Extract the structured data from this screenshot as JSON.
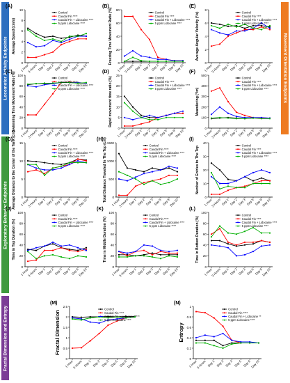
{
  "sections": {
    "locomotor": {
      "label": "Locomotor Activity Endpoints",
      "color": "#2e6fbf"
    },
    "movement": {
      "label": "Movement Orientation Endpoints",
      "color": "#ee7b21"
    },
    "exploratory": {
      "label": "Exploratory Behavior Endpoints",
      "color": "#3f9a3f"
    },
    "fractal": {
      "label": "Fractal Dimension and Entropy",
      "color": "#7b3d96"
    }
  },
  "series_colors": [
    "#000000",
    "#ff0000",
    "#0000ff",
    "#00b000"
  ],
  "x_categories": [
    "1 Hour",
    "3 Hours",
    "Day 1",
    "Day 2",
    "Day 3",
    "Day 5",
    "Day 8",
    "Day 10"
  ],
  "chart_data": [
    {
      "type": "line",
      "panel": "(A)",
      "ylabel": "Average Speed (cm/s)",
      "ylim": [
        0,
        10
      ],
      "yticks": [
        0,
        2,
        4,
        6,
        8,
        10
      ],
      "legend": [
        "Control",
        "Caudal Fin ****",
        "Caudal Fin + Lidocaine ****",
        "5 ppm Lidocaine ****"
      ],
      "series": [
        {
          "name": "Control",
          "values": [
            6.5,
            5.5,
            4.8,
            5.0,
            4.6,
            4.8,
            5.2,
            5.0
          ]
        },
        {
          "name": "Caudal Fin ****",
          "values": [
            1.0,
            1.0,
            1.5,
            2.0,
            3.4,
            4.0,
            4.5,
            4.5
          ]
        },
        {
          "name": "Caudal Fin + Lidocaine ****",
          "values": [
            3.8,
            3.0,
            3.2,
            4.2,
            3.8,
            4.4,
            5.0,
            5.0
          ]
        },
        {
          "name": "5 ppm Lidocaine ****",
          "values": [
            6.2,
            5.0,
            4.2,
            4.5,
            4.0,
            5.0,
            5.0,
            5.5
          ]
        }
      ]
    },
    {
      "type": "line",
      "panel": "(B)",
      "ylabel": "Freezing Time Movement Ratio (%)",
      "ylim": [
        0,
        80
      ],
      "yticks": [
        0,
        20,
        40,
        60,
        80
      ],
      "legend": [
        "Control",
        "Caudal Fin ****",
        "Caudal Fin + Lidocaine ****",
        "5 ppm Lidocaine ****"
      ],
      "series": [
        {
          "name": "Control",
          "values": [
            2,
            2,
            2,
            2,
            2,
            2,
            2,
            2
          ]
        },
        {
          "name": "Caudal Fin ****",
          "values": [
            70,
            70,
            50,
            35,
            8,
            5,
            3,
            3
          ]
        },
        {
          "name": "Caudal Fin + Lidocaine ****",
          "values": [
            10,
            18,
            10,
            8,
            5,
            5,
            3,
            3
          ]
        },
        {
          "name": "5 ppm Lidocaine ****",
          "values": [
            2,
            8,
            3,
            2,
            2,
            2,
            2,
            2
          ]
        }
      ]
    },
    {
      "type": "line",
      "panel": "(C)",
      "ylabel": "Swimming Time Movement Ratio (%)",
      "ylim": [
        0,
        100
      ],
      "yticks": [
        0,
        20,
        40,
        60,
        80,
        100
      ],
      "legend": [
        "Control",
        "Caudal Fin ****",
        "Caudal Fin + Lidocaine ****",
        "5 ppm Lidocaine ****"
      ],
      "series": [
        {
          "name": "Control",
          "values": [
            82,
            84,
            84,
            85,
            86,
            86,
            85,
            85
          ]
        },
        {
          "name": "Caudal Fin ****",
          "values": [
            25,
            25,
            45,
            65,
            86,
            87,
            86,
            85
          ]
        },
        {
          "name": "Caudal Fin + Lidocaine ****",
          "values": [
            80,
            78,
            82,
            84,
            86,
            86,
            86,
            85
          ]
        },
        {
          "name": "5 ppm Lidocaine ****",
          "values": [
            83,
            84,
            85,
            85,
            86,
            86,
            85,
            86
          ]
        }
      ]
    },
    {
      "type": "line",
      "panel": "(D)",
      "ylabel": "Rapid movement time ratio (%)",
      "ylim": [
        0,
        25
      ],
      "yticks": [
        0,
        5,
        10,
        15,
        20,
        25
      ],
      "legend": [
        "Control",
        "Caudal Fin ****",
        "Caudal Fin + Lidocaine ****",
        "5 ppm Lidocaine ****"
      ],
      "series": [
        {
          "name": "Control",
          "values": [
            15,
            10,
            6,
            5,
            5,
            6,
            7,
            7
          ]
        },
        {
          "name": "Caudal Fin ****",
          "values": [
            1,
            1,
            2,
            3,
            5,
            6,
            7,
            7
          ]
        },
        {
          "name": "Caudal Fin + Lidocaine ****",
          "values": [
            5,
            4,
            5,
            6,
            5,
            6,
            7,
            8
          ]
        },
        {
          "name": "5 ppm Lidocaine ****",
          "values": [
            12,
            8,
            5,
            4,
            4,
            5,
            5,
            5
          ]
        }
      ]
    },
    {
      "type": "line",
      "panel": "(E)",
      "ylabel": "Average Angular Velocity (°/s)",
      "ylim": [
        0,
        8
      ],
      "yticks": [
        0,
        2,
        4,
        6,
        8
      ],
      "legend": [
        "Control",
        "Caudal Fin ****",
        "Caudal Fin + Lidocaine ****",
        "5 ppm Lidocaine ****"
      ],
      "series": [
        {
          "name": "Control",
          "values": [
            6.0,
            5.8,
            5.5,
            5.6,
            5.2,
            5.6,
            5.6,
            5.4
          ]
        },
        {
          "name": "Caudal Fin ****",
          "values": [
            2.5,
            2.8,
            4.0,
            4.5,
            5.0,
            5.0,
            5.4,
            5.0
          ]
        },
        {
          "name": "Caudal Fin + Lidocaine ****",
          "values": [
            5.0,
            4.5,
            4.2,
            4.8,
            4.8,
            5.2,
            6.0,
            5.2
          ]
        },
        {
          "name": "5 ppm Lidocaine ****",
          "values": [
            5.6,
            5.2,
            5.8,
            5.4,
            5.8,
            5.2,
            5.0,
            5.6
          ]
        }
      ]
    },
    {
      "type": "line",
      "panel": "(F)",
      "ylabel": "Meandering (°/m)",
      "ylim": [
        0,
        500
      ],
      "yticks": [
        0,
        100,
        200,
        300,
        400,
        500
      ],
      "legend": [
        "Control",
        "Caudal Fin ****",
        "Caudal Fin + Lidocaine ****",
        "5 ppm Lidocaine ****"
      ],
      "series": [
        {
          "name": "Control",
          "values": [
            90,
            95,
            100,
            95,
            90,
            95,
            95,
            95
          ]
        },
        {
          "name": "Caudal Fin ****",
          "values": [
            350,
            380,
            250,
            150,
            120,
            100,
            95,
            95
          ]
        },
        {
          "name": "Caudal Fin + Lidocaine ****",
          "values": [
            130,
            200,
            140,
            110,
            100,
            100,
            100,
            95
          ]
        },
        {
          "name": "5 ppm Lidocaine ****",
          "values": [
            95,
            100,
            95,
            90,
            90,
            95,
            90,
            90
          ]
        }
      ]
    },
    {
      "type": "line",
      "panel": "(G)",
      "ylabel": "Average Distance to the Center of the Tank (cm)",
      "ylim": [
        0,
        15
      ],
      "yticks": [
        0,
        5,
        10,
        15
      ],
      "legend": [
        "Control",
        "Caudal Fin ****",
        "Caudal Fin + Lidocaine ****",
        "5 ppm Lidocaine ****"
      ],
      "series": [
        {
          "name": "Control",
          "values": [
            10.0,
            9.8,
            9.5,
            9.2,
            9.0,
            9.5,
            10.5,
            10.2
          ]
        },
        {
          "name": "Caudal Fin ****",
          "values": [
            7.0,
            7.5,
            6.5,
            8.0,
            8.5,
            9.0,
            10.5,
            10.0
          ]
        },
        {
          "name": "Caudal Fin + Lidocaine ****",
          "values": [
            9.0,
            8.0,
            7.5,
            7.5,
            8.0,
            9.0,
            10.0,
            9.5
          ]
        },
        {
          "name": "5 ppm Lidocaine ****",
          "values": [
            9.0,
            9.0,
            6.0,
            8.0,
            8.5,
            9.5,
            9.5,
            9.5
          ]
        }
      ]
    },
    {
      "type": "line",
      "panel": "(H)",
      "ylabel": "Total Distance Traveled In The Top (cm)",
      "ylim": [
        0,
        1500
      ],
      "yticks": [
        0,
        500,
        1000,
        1500
      ],
      "legend": [
        "Control",
        "Caudal Fin ****",
        "Caudal Fin + Lidocaine ****",
        "5 ppm Lidocaine ****"
      ],
      "series": [
        {
          "name": "Control",
          "values": [
            1200,
            800,
            750,
            700,
            800,
            750,
            800,
            700
          ]
        },
        {
          "name": "Caudal Fin ****",
          "values": [
            50,
            50,
            300,
            400,
            450,
            500,
            600,
            600
          ]
        },
        {
          "name": "Caudal Fin + Lidocaine ****",
          "values": [
            500,
            450,
            550,
            650,
            700,
            750,
            850,
            800
          ]
        },
        {
          "name": "5 ppm Lidocaine ****",
          "values": [
            700,
            600,
            500,
            350,
            450,
            350,
            400,
            500
          ]
        }
      ]
    },
    {
      "type": "line",
      "panel": "(I)",
      "ylabel": "Number of Entries to The Top",
      "ylim": [
        0,
        40
      ],
      "yticks": [
        0,
        10,
        20,
        30,
        40
      ],
      "legend": [
        "Control",
        "Caudal Fin ****",
        "Caudal Fin + Lidocaine ****",
        "5 ppm Lidocaine ****"
      ],
      "series": [
        {
          "name": "Control",
          "values": [
            25,
            20,
            13,
            12,
            15,
            12,
            14,
            12
          ]
        },
        {
          "name": "Caudal Fin ****",
          "values": [
            2,
            2,
            5,
            7,
            8,
            10,
            12,
            12
          ]
        },
        {
          "name": "Caudal Fin + Lidocaine ****",
          "values": [
            15,
            10,
            10,
            12,
            15,
            18,
            20,
            18
          ]
        },
        {
          "name": "5 ppm Lidocaine ****",
          "values": [
            18,
            6,
            8,
            7,
            7,
            10,
            10,
            10
          ]
        }
      ]
    },
    {
      "type": "line",
      "panel": "(J)",
      "ylabel": "Time in Top Duration (%)",
      "ylim": [
        0,
        100
      ],
      "yticks": [
        0,
        20,
        40,
        60,
        80,
        100
      ],
      "legend": [
        "Control",
        "Caudal Fin ****",
        "Caudal Fin + Lidocaine ****",
        "5 ppm Lidocaine ****"
      ],
      "series": [
        {
          "name": "Control",
          "values": [
            32,
            30,
            38,
            42,
            35,
            32,
            30,
            35
          ]
        },
        {
          "name": "Caudal Fin ****",
          "values": [
            10,
            12,
            30,
            30,
            35,
            30,
            28,
            32
          ]
        },
        {
          "name": "Caudal Fin + Lidocaine ****",
          "values": [
            30,
            35,
            38,
            45,
            38,
            40,
            35,
            30
          ]
        },
        {
          "name": "5 ppm Lidocaine ****",
          "values": [
            28,
            15,
            20,
            22,
            18,
            15,
            20,
            18
          ]
        }
      ]
    },
    {
      "type": "line",
      "panel": "(K)",
      "ylabel": "Time in Middle Duration (%)",
      "ylim": [
        0,
        100
      ],
      "yticks": [
        0,
        20,
        40,
        60,
        80,
        100
      ],
      "legend": [
        "Control",
        "Caudal Fin ****",
        "Caudal Fin + Lidocaine ****",
        "5 ppm Lidocaine ****"
      ],
      "series": [
        {
          "name": "Control",
          "values": [
            22,
            22,
            20,
            22,
            25,
            22,
            22,
            22
          ]
        },
        {
          "name": "Caudal Fin ****",
          "values": [
            28,
            20,
            28,
            30,
            22,
            28,
            25,
            25
          ]
        },
        {
          "name": "Caudal Fin + Lidocaine ****",
          "values": [
            28,
            25,
            28,
            40,
            38,
            30,
            28,
            30
          ]
        },
        {
          "name": "5 ppm Lidocaine ****",
          "values": [
            18,
            18,
            20,
            20,
            18,
            15,
            20,
            18
          ]
        }
      ]
    },
    {
      "type": "line",
      "panel": "(L)",
      "ylabel": "Time in Bottom Duration (%)",
      "ylim": [
        0,
        100
      ],
      "yticks": [
        0,
        20,
        40,
        60,
        80,
        100
      ],
      "legend": [
        "Control",
        "Caudal Fin ****",
        "Caudal Fin + Lidocaine ****",
        "5 ppm Lidocaine ****"
      ],
      "series": [
        {
          "name": "Control",
          "values": [
            48,
            48,
            42,
            38,
            40,
            42,
            48,
            45
          ]
        },
        {
          "name": "Caudal Fin ****",
          "values": [
            60,
            70,
            45,
            40,
            45,
            45,
            48,
            45
          ]
        },
        {
          "name": "Caudal Fin + Lidocaine ****",
          "values": [
            40,
            38,
            35,
            20,
            22,
            28,
            38,
            40
          ]
        },
        {
          "name": "5 ppm Lidocaine ****",
          "values": [
            55,
            75,
            62,
            60,
            65,
            72,
            62,
            62
          ]
        }
      ]
    },
    {
      "type": "line",
      "panel": "(M)",
      "ylabel": "Fractal Dimension",
      "ylim": [
        0.0,
        2.5
      ],
      "yticks": [
        0.0,
        0.5,
        1.0,
        1.5,
        2.0,
        2.5
      ],
      "legend": [
        "Control",
        "Caudal Fin ****",
        "Caudal Fin + Lidocaine ****",
        "5 ppm Lidocaine ****"
      ],
      "series": [
        {
          "name": "Control",
          "values": [
            2.0,
            1.98,
            2.0,
            2.0,
            2.02,
            2.0,
            2.02,
            2.02
          ]
        },
        {
          "name": "Caudal Fin ****",
          "values": [
            0.5,
            0.52,
            0.85,
            1.2,
            1.6,
            1.8,
            1.95,
            2.0
          ]
        },
        {
          "name": "Caudal Fin + Lidocaine ****",
          "values": [
            1.95,
            1.9,
            1.75,
            1.7,
            1.85,
            1.9,
            1.95,
            2.0
          ]
        },
        {
          "name": "5 ppm Lidocaine ****",
          "values": [
            1.9,
            1.85,
            1.95,
            2.0,
            1.95,
            2.0,
            1.95,
            2.0
          ]
        }
      ]
    },
    {
      "type": "line",
      "panel": "(N)",
      "ylabel": "Entropy",
      "ylim": [
        0.0,
        1.0
      ],
      "yticks": [
        0.0,
        0.2,
        0.4,
        0.6,
        0.8,
        1.0
      ],
      "legend": [
        "Control",
        "Caudal Fin ****",
        "Caudal Fin + Lidocaine **",
        "5 ppm Lidocaine ****"
      ],
      "series": [
        {
          "name": "Control",
          "values": [
            0.35,
            0.35,
            0.35,
            0.25,
            0.3,
            0.3,
            0.3,
            0.3
          ]
        },
        {
          "name": "Caudal Fin ****",
          "values": [
            0.9,
            0.88,
            0.78,
            0.62,
            0.35,
            0.3,
            0.3,
            0.3
          ]
        },
        {
          "name": "Caudal Fin + Lidocaine **",
          "values": [
            0.4,
            0.45,
            0.42,
            0.48,
            0.35,
            0.32,
            0.32,
            0.3
          ]
        },
        {
          "name": "5 ppm Lidocaine ****",
          "values": [
            0.3,
            0.3,
            0.25,
            0.2,
            0.28,
            0.3,
            0.3,
            0.3
          ]
        }
      ]
    }
  ]
}
